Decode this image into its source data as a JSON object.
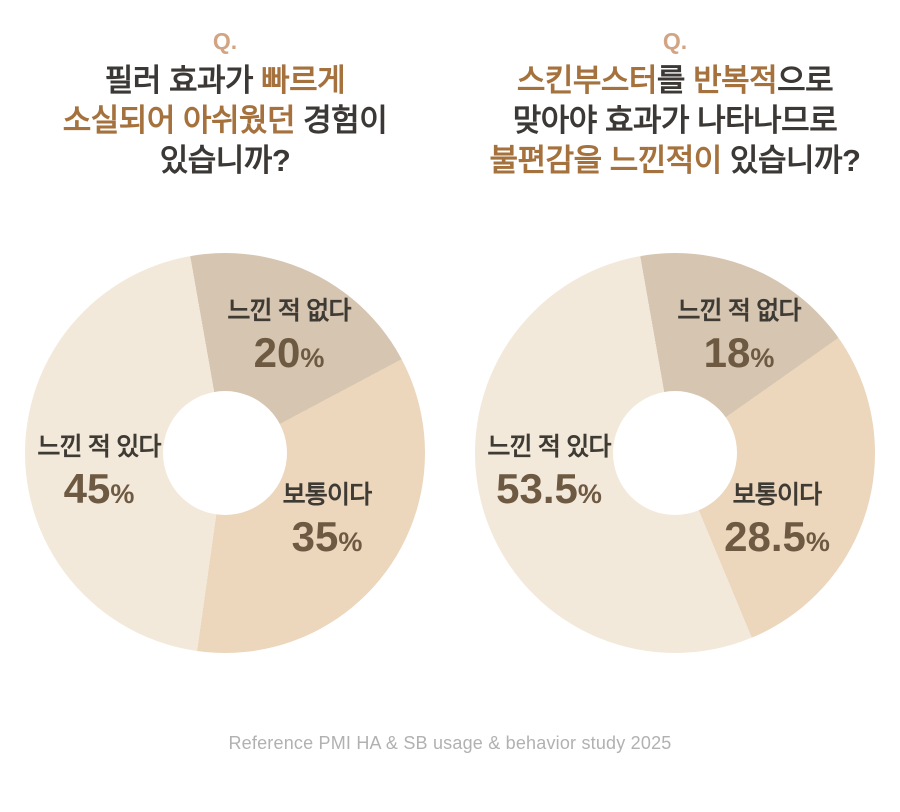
{
  "colors": {
    "background": "#ffffff",
    "question_highlight": "#a5713d",
    "question_text": "#3b3835",
    "q_mark": "#d2a483",
    "slice_name_text": "#3e3a34",
    "slice_value_text": "#6e5a42",
    "footer_text": "#b1b1b2",
    "segment_no": "#d5c5b1",
    "segment_neutral": "#ecd6bc",
    "segment_yes": "#f3e9da"
  },
  "columns": [
    {
      "q_label": "Q.",
      "title_lines": [
        [
          {
            "text": "필러 효과가 ",
            "style": "normal"
          },
          {
            "text": "빠르게",
            "style": "bold"
          }
        ],
        [
          {
            "text": "소실되어 아쉬웠던",
            "style": "bold"
          },
          {
            "text": " 경험이",
            "style": "normal"
          }
        ],
        [
          {
            "text": "있습니까?",
            "style": "normal"
          }
        ]
      ]
    },
    {
      "q_label": "Q.",
      "title_lines": [
        [
          {
            "text": "스킨부스터",
            "style": "bold"
          },
          {
            "text": "를 ",
            "style": "normal"
          },
          {
            "text": "반복적",
            "style": "bold"
          },
          {
            "text": "으로",
            "style": "normal"
          }
        ],
        [
          {
            "text": "맞아야 효과가 나타나므로",
            "style": "normal"
          }
        ],
        [
          {
            "text": "불편감을 느낀적이",
            "style": "bold"
          },
          {
            "text": " 있습니까?",
            "style": "normal"
          }
        ]
      ]
    }
  ],
  "chart_data": [
    {
      "type": "pie",
      "donut": true,
      "title": "필러 효과가 빠르게 소실되어 아쉬웠던 경험이 있습니까?",
      "categories": [
        "느낀 적 없다",
        "보통이다",
        "느낀 적 있다"
      ],
      "values": [
        20,
        35,
        45
      ],
      "unit": "%",
      "start_angle_deg": -10,
      "direction": "clockwise",
      "segment_colors": [
        "#d5c5b1",
        "#ecd6bc",
        "#f3e9da"
      ],
      "legend": "labels-on-slices",
      "hole_ratio": 0.31
    },
    {
      "type": "pie",
      "donut": true,
      "title": "스킨부스터를 반복적으로 맞아야 효과가 나타나므로 불편감을 느낀적이 있습니까?",
      "categories": [
        "느낀 적 없다",
        "보통이다",
        "느낀 적 있다"
      ],
      "values": [
        18,
        28.5,
        53.5
      ],
      "unit": "%",
      "start_angle_deg": -10,
      "direction": "clockwise",
      "segment_colors": [
        "#d5c5b1",
        "#ecd6bc",
        "#f3e9da"
      ],
      "legend": "labels-on-slices",
      "hole_ratio": 0.31
    }
  ],
  "footer": {
    "text": "Reference PMI HA & SB usage & behavior study 2025"
  }
}
